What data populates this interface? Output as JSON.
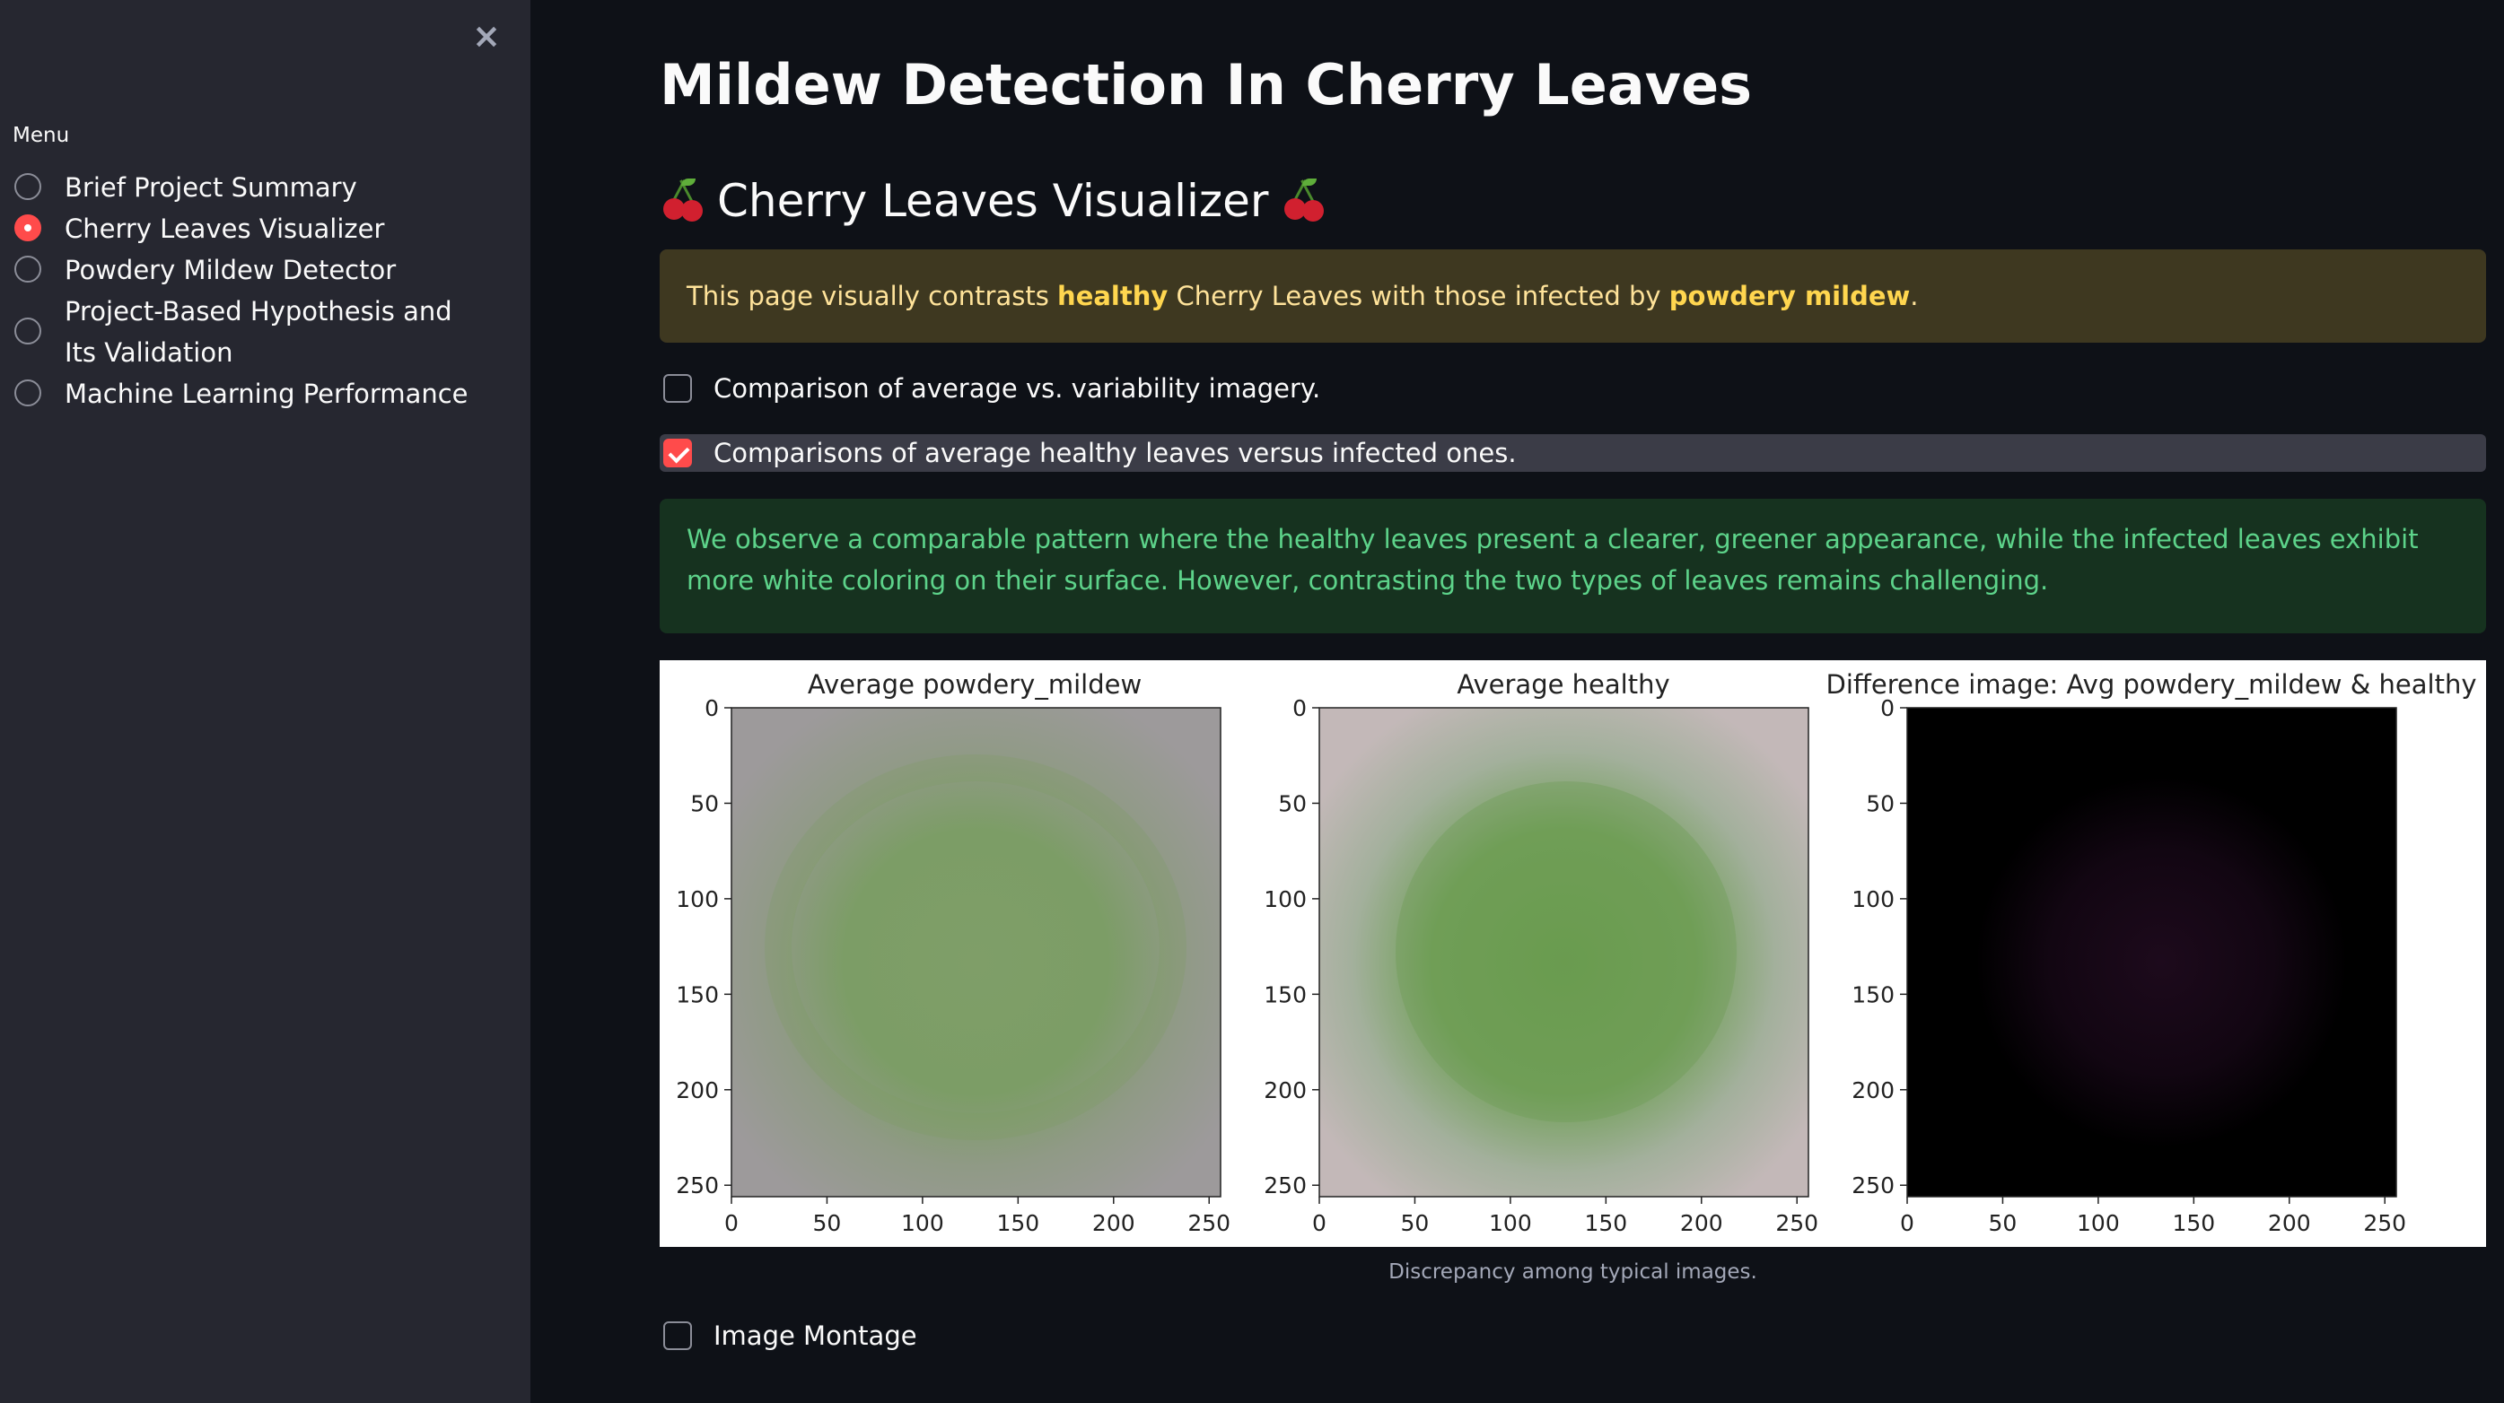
{
  "sidebar": {
    "close_icon": "×",
    "menu_label": "Menu",
    "items": [
      {
        "label": "Brief Project Summary",
        "selected": false
      },
      {
        "label": "Cherry Leaves Visualizer",
        "selected": true
      },
      {
        "label": "Powdery Mildew Detector",
        "selected": false
      },
      {
        "label": "Project-Based Hypothesis and Its Validation",
        "selected": false
      },
      {
        "label": "Machine Learning Performance",
        "selected": false
      }
    ]
  },
  "main": {
    "title": "Mildew Detection In Cherry Leaves",
    "subheader": "Cherry Leaves Visualizer",
    "warning": {
      "pre": "This page visually contrasts ",
      "bold1": "healthy",
      "mid": " Cherry Leaves with those infected by ",
      "bold2": "powdery mildew",
      "post": "."
    },
    "checkboxes": [
      {
        "label": "Comparison of average vs. variability imagery.",
        "checked": false
      },
      {
        "label": "Comparisons of average healthy leaves versus infected ones.",
        "checked": true
      },
      {
        "label": "Image Montage",
        "checked": false
      }
    ],
    "success_text": "We observe a comparable pattern where the healthy leaves present a clearer, greener appearance, while the infected leaves exhibit more white coloring on their surface. However, contrasting the two types of leaves remains challenging.",
    "figure": {
      "panels": [
        {
          "title": "Average powdery_mildew",
          "kind": "mildew"
        },
        {
          "title": "Average healthy",
          "kind": "healthy"
        },
        {
          "title": "Difference image: Avg powdery_mildew & healthy",
          "kind": "difference"
        }
      ],
      "x_ticks": [
        "0",
        "50",
        "100",
        "150",
        "200",
        "250"
      ],
      "y_ticks": [
        "0",
        "50",
        "100",
        "150",
        "200",
        "250"
      ]
    },
    "caption": "Discrepancy among typical images."
  },
  "colors": {
    "accent": "#ff4b4b",
    "sidebar_bg": "#262730",
    "main_bg": "#0e1117",
    "warning_bg": "#3e3820",
    "warning_text": "#ffe39a",
    "success_bg": "#16321f",
    "success_text": "#5dd38a"
  }
}
